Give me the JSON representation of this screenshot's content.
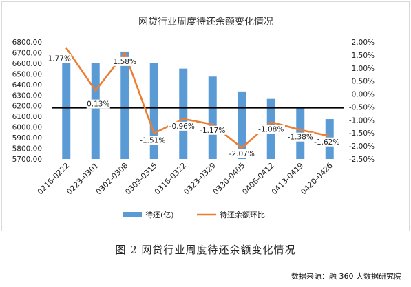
{
  "chart_data": {
    "type": "bar",
    "title": "网贷行业周度待还余额变化情况",
    "categories": [
      "0216-0222",
      "0223-0301",
      "0302-0308",
      "0309-0315",
      "0316-0322",
      "0323-0329",
      "0330-0405",
      "0406-0412",
      "0413-0419",
      "0420-0426"
    ],
    "series": [
      {
        "name": "待还(亿)",
        "kind": "bar",
        "axis": "left",
        "values": [
          6600,
          6605,
          6710,
          6605,
          6550,
          6475,
          6335,
          6265,
          6183,
          6075
        ]
      },
      {
        "name": "待还余额环比",
        "kind": "line",
        "axis": "right",
        "values": [
          1.77,
          0.13,
          1.58,
          -1.51,
          -0.96,
          -1.17,
          -2.07,
          -1.08,
          -1.38,
          -1.62
        ],
        "labels": [
          "1.77%",
          "0.13%",
          "1.58%",
          "-1.51%",
          "-0.96%",
          "-1.17%",
          "-2.07%",
          "-1.08%",
          "-1.38%",
          "-1.62%"
        ]
      }
    ],
    "left_axis": {
      "min": 5700,
      "max": 6800,
      "step": 100,
      "ticks": [
        "5700.00",
        "5800.00",
        "5900.00",
        "6000.00",
        "6100.00",
        "6200.00",
        "6300.00",
        "6400.00",
        "6500.00",
        "6600.00",
        "6700.00",
        "6800.00"
      ]
    },
    "right_axis": {
      "min": -2.5,
      "max": 2.0,
      "step": 0.5,
      "ticks": [
        "-2.50%",
        "-2.00%",
        "-1.50%",
        "-1.00%",
        "-0.50%",
        "0.00%",
        "0.50%",
        "1.00%",
        "1.50%",
        "2.00%"
      ]
    },
    "reference_line": {
      "axis": "left",
      "value": 6180
    },
    "legend_position": "bottom",
    "grid": false,
    "colors": {
      "bar": "#5b9bd5",
      "line": "#ed7d31",
      "reference": "#000000"
    }
  },
  "caption": "图 2  网贷行业周度待还余额变化情况",
  "source": "数据来源：融 360 大数据研究院"
}
